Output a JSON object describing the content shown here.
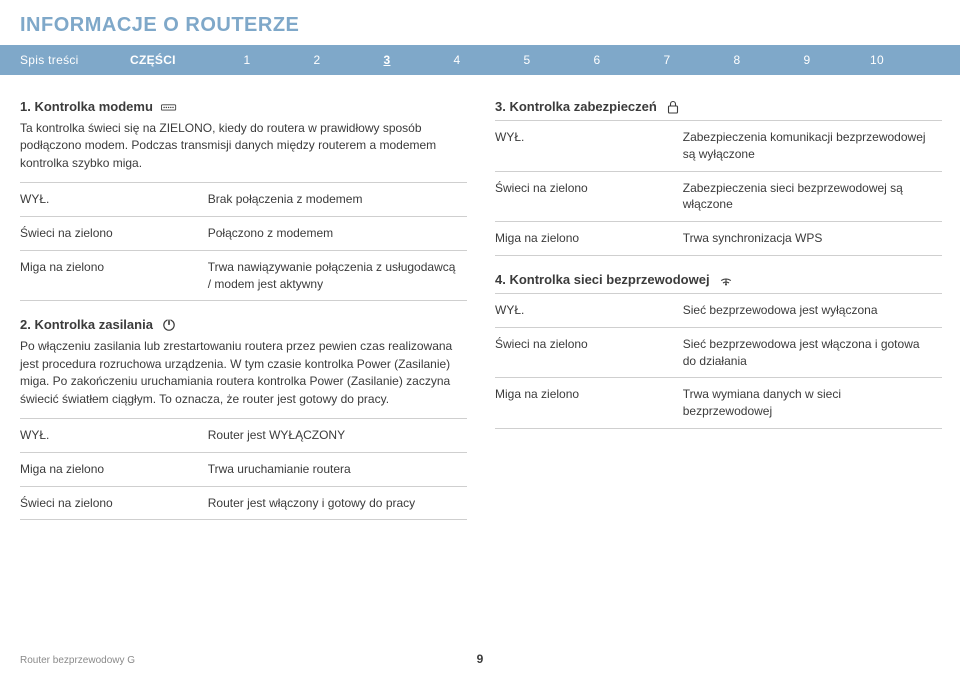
{
  "colors": {
    "accent": "#7fa8c9",
    "text": "#3b3b3b",
    "border": "#cfcfcf",
    "nav_text": "#ffffff"
  },
  "title": "INFORMACJE O ROUTERZE",
  "nav": {
    "toc": "Spis treści",
    "parts_label": "CZĘŚCI",
    "items": [
      "1",
      "2",
      "3",
      "4",
      "5",
      "6",
      "7",
      "8",
      "9",
      "10"
    ],
    "current_index": 2
  },
  "left": {
    "s1_heading": "1. Kontrolka modemu",
    "s1_body": "Ta kontrolka świeci się na ZIELONO, kiedy do routera w prawidłowy sposób podłączono modem. Podczas transmisji danych między routerem a modemem kontrolka szybko miga.",
    "s1_table": [
      [
        "WYŁ.",
        "Brak połączenia z modemem"
      ],
      [
        "Świeci na zielono",
        "Połączono z modemem"
      ],
      [
        "Miga na zielono",
        "Trwa nawiązywanie połączenia z usługodawcą / modem jest aktywny"
      ]
    ],
    "s2_heading": "2. Kontrolka zasilania",
    "s2_body": "Po włączeniu zasilania lub zrestartowaniu routera przez pewien czas realizowana jest procedura rozruchowa urządzenia. W tym czasie kontrolka Power (Zasilanie) miga. Po zakończeniu uruchamiania routera kontrolka Power (Zasilanie) zaczyna świecić światłem ciągłym. To oznacza, że router jest gotowy do pracy.",
    "s2_table": [
      [
        "WYŁ.",
        "Router jest WYŁĄCZONY"
      ],
      [
        "Miga na zielono",
        "Trwa uruchamianie routera"
      ],
      [
        "Świeci na zielono",
        "Router jest włączony i gotowy do pracy"
      ]
    ]
  },
  "right": {
    "s3_heading": "3. Kontrolka zabezpieczeń",
    "s3_table": [
      [
        "WYŁ.",
        "Zabezpieczenia komunikacji bezprzewodowej są wyłączone"
      ],
      [
        "Świeci na zielono",
        "Zabezpieczenia sieci bezprzewodowej są włączone"
      ],
      [
        "Miga na zielono",
        "Trwa synchronizacja WPS"
      ]
    ],
    "s4_heading": "4. Kontrolka sieci bezprzewodowej",
    "s4_table": [
      [
        "WYŁ.",
        "Sieć bezprzewodowa jest wyłączona"
      ],
      [
        "Świeci na zielono",
        "Sieć bezprzewodowa jest włączona i gotowa do działania"
      ],
      [
        "Miga na zielono",
        "Trwa wymiana danych w sieci bezprzewodowej"
      ]
    ]
  },
  "footer": "Router bezprzewodowy G",
  "page": "9"
}
